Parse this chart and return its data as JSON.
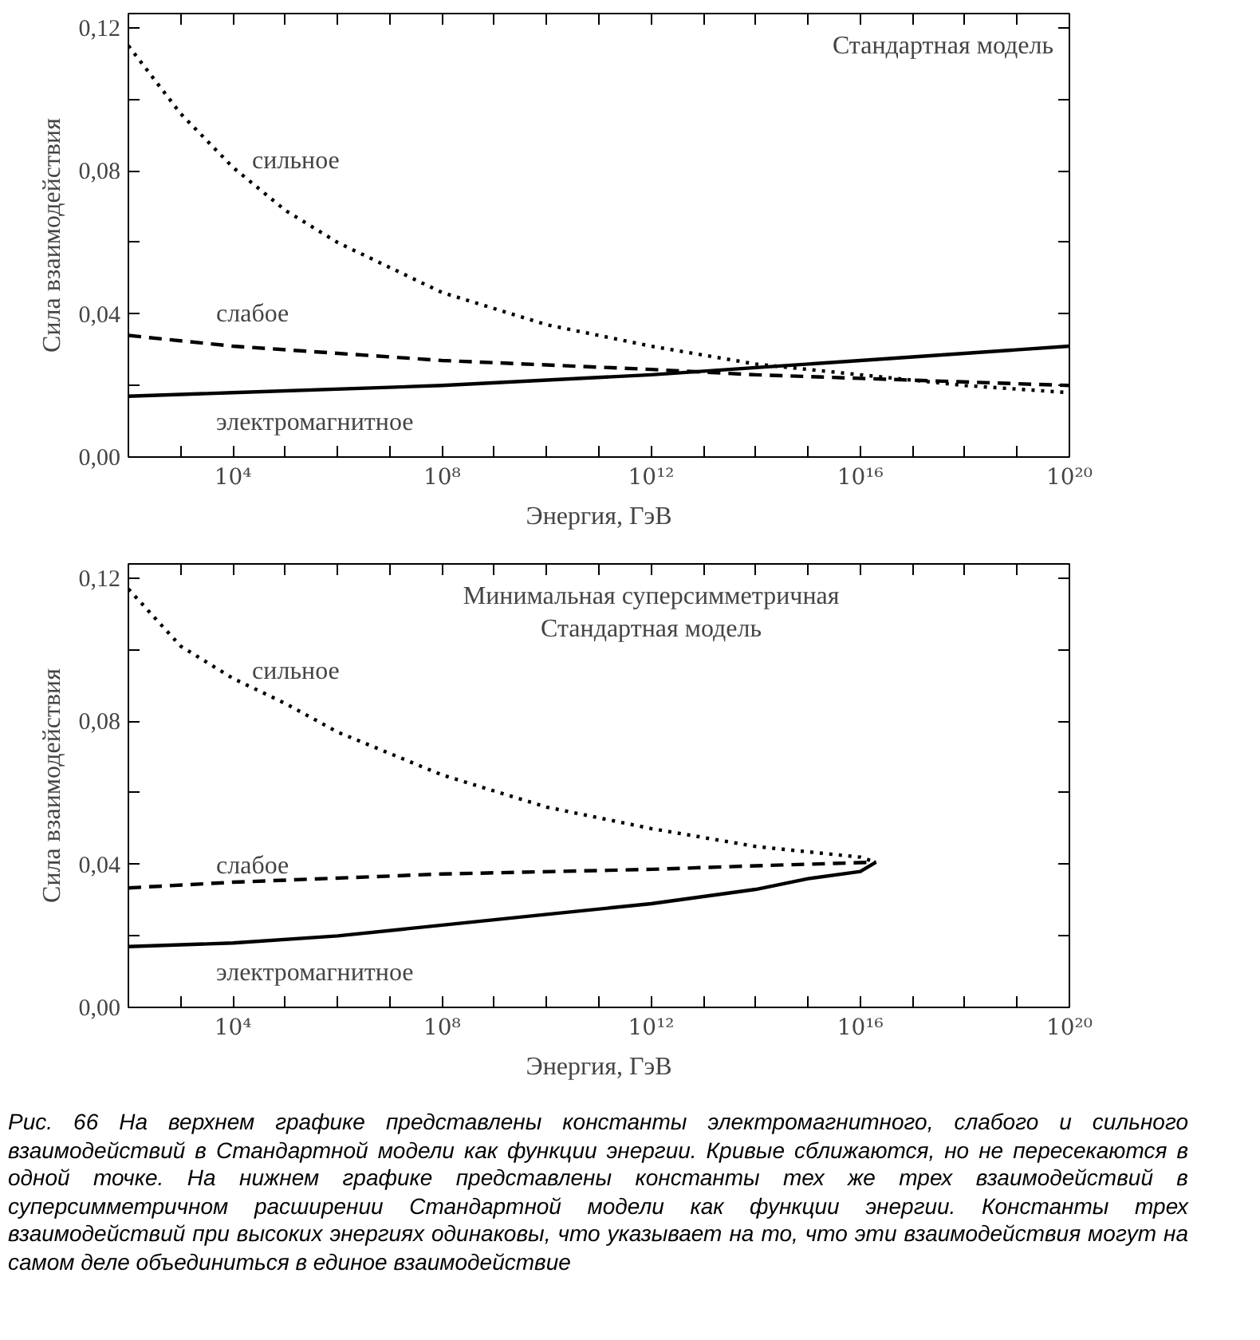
{
  "chart_data": [
    {
      "type": "line",
      "title": "Стандартная модель",
      "xlabel": "Энергия, ГэВ",
      "ylabel": "Сила взаимодействия",
      "log": "x",
      "grid": false,
      "legend": false,
      "xlim": [
        100.0,
        1e+20
      ],
      "ylim": [
        0,
        0.124
      ],
      "xticks": [
        {
          "value": 100.0,
          "label": null
        },
        {
          "value": 1000.0,
          "label": null
        },
        {
          "value": 10000.0,
          "label": "10⁴"
        },
        {
          "value": 100000.0,
          "label": null
        },
        {
          "value": 1000000.0,
          "label": null
        },
        {
          "value": 10000000.0,
          "label": null
        },
        {
          "value": 100000000.0,
          "label": "10⁸"
        },
        {
          "value": 1000000000.0,
          "label": null
        },
        {
          "value": 10000000000.0,
          "label": null
        },
        {
          "value": 100000000000.0,
          "label": null
        },
        {
          "value": 1000000000000.0,
          "label": "10¹²"
        },
        {
          "value": 10000000000000.0,
          "label": null
        },
        {
          "value": 100000000000000.0,
          "label": null
        },
        {
          "value": 1000000000000000.0,
          "label": null
        },
        {
          "value": 1e+16,
          "label": "10¹⁶"
        },
        {
          "value": 1e+17,
          "label": null
        },
        {
          "value": 1e+18,
          "label": null
        },
        {
          "value": 1e+19,
          "label": null
        },
        {
          "value": 1e+20,
          "label": "10²⁰"
        }
      ],
      "yticks": [
        {
          "value": 0,
          "label": "0,00"
        },
        {
          "value": 0.02,
          "label": null
        },
        {
          "value": 0.04,
          "label": "0,04"
        },
        {
          "value": 0.06,
          "label": null
        },
        {
          "value": 0.08,
          "label": "0,08"
        },
        {
          "value": 0.1,
          "label": null
        },
        {
          "value": 0.12,
          "label": "0,12"
        }
      ],
      "series": [
        {
          "name": "сильное",
          "color": "#000000",
          "line_style": "dotted",
          "x": [
            100.0,
            1000.0,
            10000.0,
            100000.0,
            1000000.0,
            100000000.0,
            10000000000.0,
            1000000000000.0,
            100000000000000.0,
            1e+16,
            1e+18,
            1e+20
          ],
          "values": [
            0.115,
            0.096,
            0.081,
            0.069,
            0.06,
            0.046,
            0.037,
            0.031,
            0.026,
            0.023,
            0.02,
            0.018
          ]
        },
        {
          "name": "слабое",
          "color": "#000000",
          "line_style": "dashed",
          "x": [
            100.0,
            10000.0,
            100000000.0,
            1000000000000.0,
            100000000000000.0,
            1e+16,
            1e+20
          ],
          "values": [
            0.034,
            0.031,
            0.027,
            0.0245,
            0.023,
            0.022,
            0.02
          ]
        },
        {
          "name": "электромагнитное",
          "color": "#000000",
          "line_style": "solid",
          "x": [
            100.0,
            10000.0,
            100000000.0,
            1000000000000.0,
            100000000000000.0,
            1e+16,
            1e+18,
            1e+20
          ],
          "values": [
            0.017,
            0.018,
            0.02,
            0.023,
            0.025,
            0.027,
            0.029,
            0.031
          ]
        }
      ]
    },
    {
      "type": "line",
      "title": "Минимальная суперсимметричная\nСтандартная модель",
      "xlabel": "Энергия, ГэВ",
      "ylabel": "Сила взаимодействия",
      "log": "x",
      "grid": false,
      "legend": false,
      "xlim": [
        100.0,
        1e+20
      ],
      "ylim": [
        0,
        0.124
      ],
      "xticks": [
        {
          "value": 100.0,
          "label": null
        },
        {
          "value": 1000.0,
          "label": null
        },
        {
          "value": 10000.0,
          "label": "10⁴"
        },
        {
          "value": 100000.0,
          "label": null
        },
        {
          "value": 1000000.0,
          "label": null
        },
        {
          "value": 10000000.0,
          "label": null
        },
        {
          "value": 100000000.0,
          "label": "10⁸"
        },
        {
          "value": 1000000000.0,
          "label": null
        },
        {
          "value": 10000000000.0,
          "label": null
        },
        {
          "value": 100000000000.0,
          "label": null
        },
        {
          "value": 1000000000000.0,
          "label": "10¹²"
        },
        {
          "value": 10000000000000.0,
          "label": null
        },
        {
          "value": 100000000000000.0,
          "label": null
        },
        {
          "value": 1000000000000000.0,
          "label": null
        },
        {
          "value": 1e+16,
          "label": "10¹⁶"
        },
        {
          "value": 1e+17,
          "label": null
        },
        {
          "value": 1e+18,
          "label": null
        },
        {
          "value": 1e+19,
          "label": null
        },
        {
          "value": 1e+20,
          "label": "10²⁰"
        }
      ],
      "yticks": [
        {
          "value": 0,
          "label": "0,00"
        },
        {
          "value": 0.02,
          "label": null
        },
        {
          "value": 0.04,
          "label": "0,04"
        },
        {
          "value": 0.06,
          "label": null
        },
        {
          "value": 0.08,
          "label": "0,08"
        },
        {
          "value": 0.1,
          "label": null
        },
        {
          "value": 0.12,
          "label": "0,12"
        }
      ],
      "series": [
        {
          "name": "сильное",
          "color": "#000000",
          "line_style": "dotted",
          "x": [
            100.0,
            1000.0,
            10000.0,
            100000.0,
            1000000.0,
            100000000.0,
            10000000000.0,
            1000000000000.0,
            100000000000000.0,
            1e+16,
            2e+16
          ],
          "values": [
            0.117,
            0.101,
            0.092,
            0.085,
            0.077,
            0.065,
            0.056,
            0.05,
            0.045,
            0.042,
            0.0406
          ]
        },
        {
          "name": "слабое",
          "color": "#000000",
          "line_style": "dashed",
          "x": [
            100.0,
            10000.0,
            100000000.0,
            1000000000000.0,
            100000000000000.0,
            2e+16
          ],
          "values": [
            0.0334,
            0.035,
            0.0373,
            0.0386,
            0.0396,
            0.0406
          ]
        },
        {
          "name": "электромагнитное",
          "color": "#000000",
          "line_style": "solid",
          "x": [
            100.0,
            10000.0,
            1000000.0,
            100000000.0,
            10000000000.0,
            1000000000000.0,
            100000000000000.0,
            1000000000000000.0,
            1e+16,
            2e+16
          ],
          "values": [
            0.017,
            0.018,
            0.02,
            0.023,
            0.026,
            0.029,
            0.033,
            0.036,
            0.038,
            0.0406
          ]
        }
      ],
      "annotations": [
        "Рис. 66 На верхнем графике представлены константы электромагнитного, слабого и сильного взаимодействий в Стандартной модели как функции энергии. Кривые сближаются, но не пересекаются в одной точке. На нижнем графике представлены константы тех же трех взаимодействий в суперсимметричном расширении Стандартной модели как функции энергии. Константы трех взаимодействий при высоких энергиях одинаковы, что указывает на то, что эти взаимодействия могут на самом деле объединиться в единое взаимодействие"
      ]
    }
  ]
}
